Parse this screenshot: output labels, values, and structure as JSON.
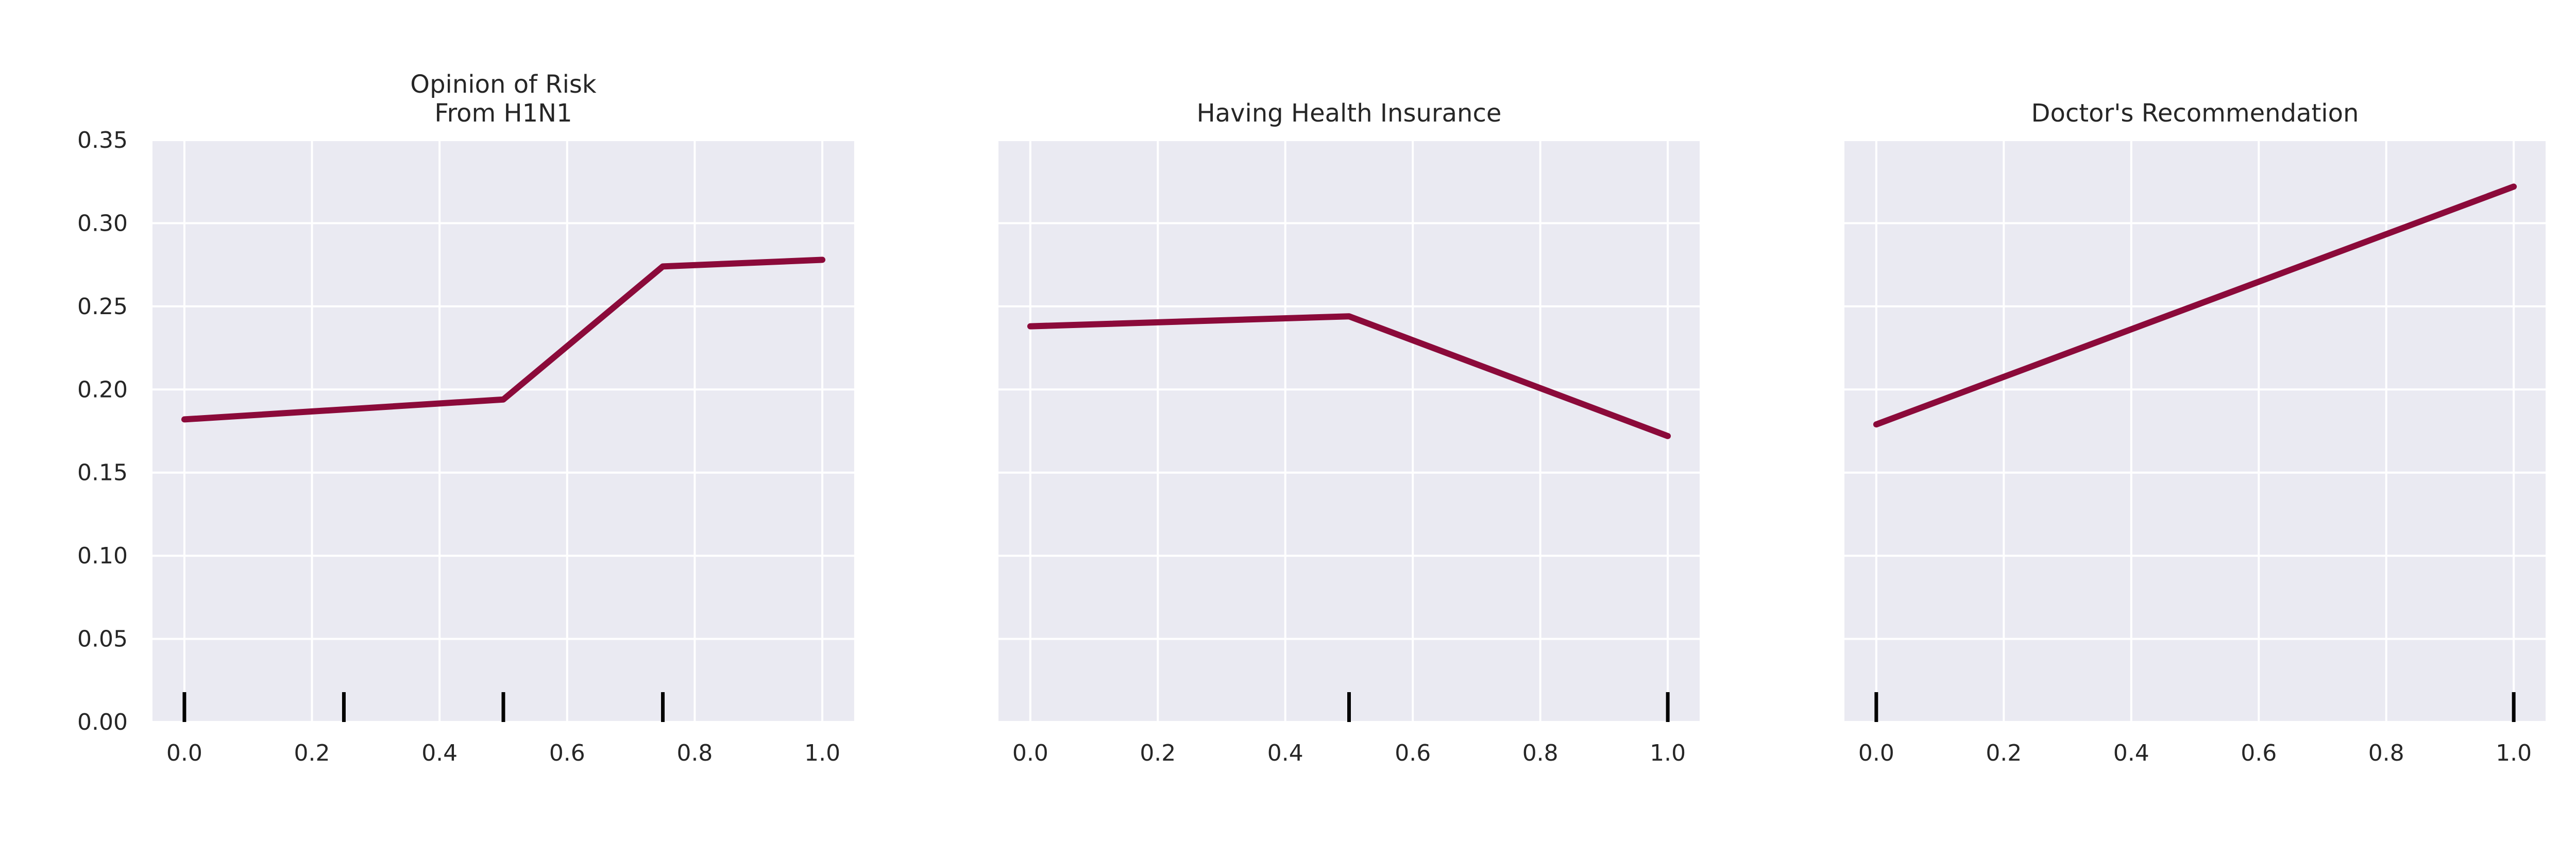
{
  "colors": {
    "background": "#ffffff",
    "plot_background": "#eaeaf2",
    "grid": "#ffffff",
    "line": "#8b0a3a",
    "rug": "#000000",
    "text": "#262626"
  },
  "chart_data": [
    {
      "type": "line",
      "title": [
        "Opinion of Risk",
        "From H1N1"
      ],
      "xlabel": "",
      "ylabel": "",
      "xlim": [
        -0.05,
        1.05
      ],
      "ylim": [
        0,
        0.35
      ],
      "xticks": [
        "0.0",
        "0.2",
        "0.4",
        "0.6",
        "0.8",
        "1.0"
      ],
      "yticks": [
        "0.00",
        "0.05",
        "0.10",
        "0.15",
        "0.20",
        "0.25",
        "0.30",
        "0.35"
      ],
      "show_yticklabels": true,
      "grid": true,
      "x": [
        0.0,
        0.5,
        0.75,
        1.0
      ],
      "y": [
        0.182,
        0.194,
        0.274,
        0.278
      ],
      "rug": [
        0.0,
        0.25,
        0.5,
        0.75
      ]
    },
    {
      "type": "line",
      "title": [
        "Having Health Insurance"
      ],
      "xlabel": "",
      "ylabel": "",
      "xlim": [
        -0.05,
        1.05
      ],
      "ylim": [
        0,
        0.35
      ],
      "xticks": [
        "0.0",
        "0.2",
        "0.4",
        "0.6",
        "0.8",
        "1.0"
      ],
      "yticks": [],
      "show_yticklabels": false,
      "grid": true,
      "x": [
        0.0,
        0.5,
        1.0
      ],
      "y": [
        0.238,
        0.244,
        0.172
      ],
      "rug": [
        0.5,
        1.0
      ]
    },
    {
      "type": "line",
      "title": [
        "Doctor's Recommendation"
      ],
      "xlabel": "",
      "ylabel": "",
      "xlim": [
        -0.05,
        1.05
      ],
      "ylim": [
        0,
        0.35
      ],
      "xticks": [
        "0.0",
        "0.2",
        "0.4",
        "0.6",
        "0.8",
        "1.0"
      ],
      "yticks": [],
      "show_yticklabels": false,
      "grid": true,
      "x": [
        0.0,
        1.0
      ],
      "y": [
        0.179,
        0.322
      ],
      "rug": [
        0.0,
        1.0
      ]
    }
  ]
}
